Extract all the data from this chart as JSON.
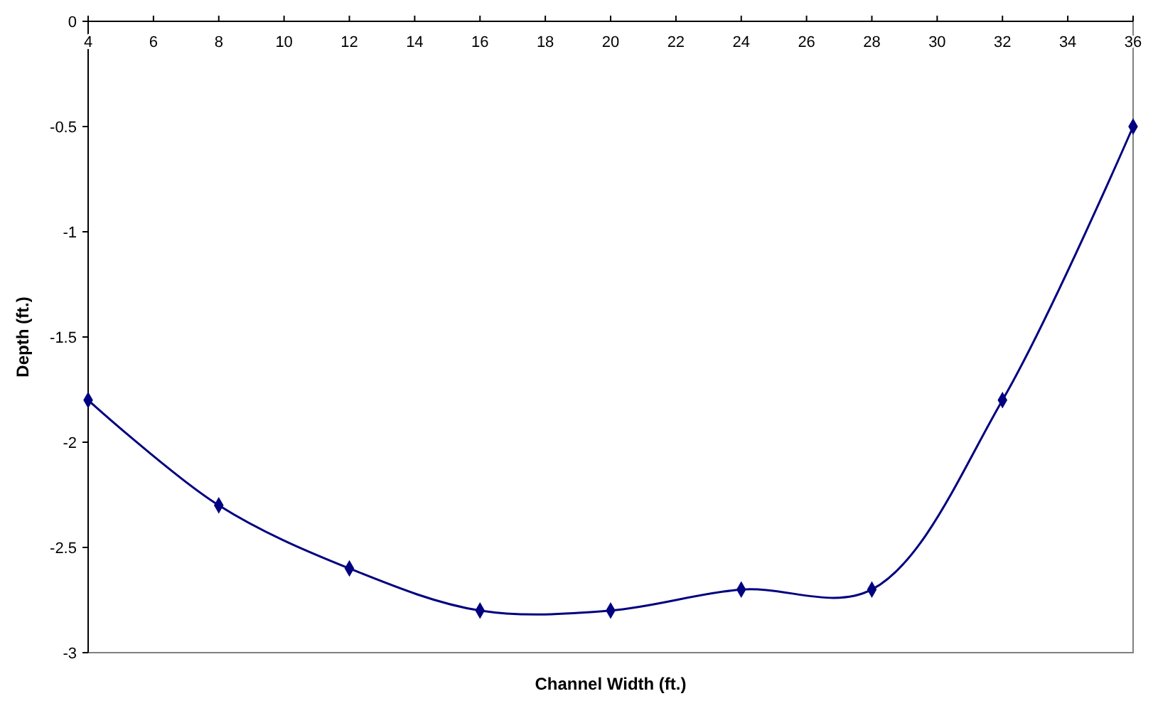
{
  "chart_data": {
    "type": "line",
    "xlabel": "Channel Width (ft.)",
    "ylabel": "Depth (ft.)",
    "x": [
      4,
      8,
      12,
      16,
      20,
      24,
      28,
      32,
      36
    ],
    "series": [
      {
        "color": "#000080",
        "values": [
          -1.8,
          -2.3,
          -2.6,
          -2.8,
          -2.8,
          -2.7,
          -2.7,
          -1.8,
          -0.5
        ]
      }
    ],
    "xlim": [
      4,
      36
    ],
    "xticks": [
      4,
      6,
      8,
      10,
      12,
      14,
      16,
      18,
      20,
      22,
      24,
      26,
      28,
      30,
      32,
      34,
      36
    ],
    "ylim": [
      -3,
      0
    ],
    "yticks": [
      -3,
      -2.5,
      -2,
      -1.5,
      -1,
      -0.5,
      0
    ],
    "grid": false,
    "marker": "diamond",
    "line_style": "solid"
  }
}
